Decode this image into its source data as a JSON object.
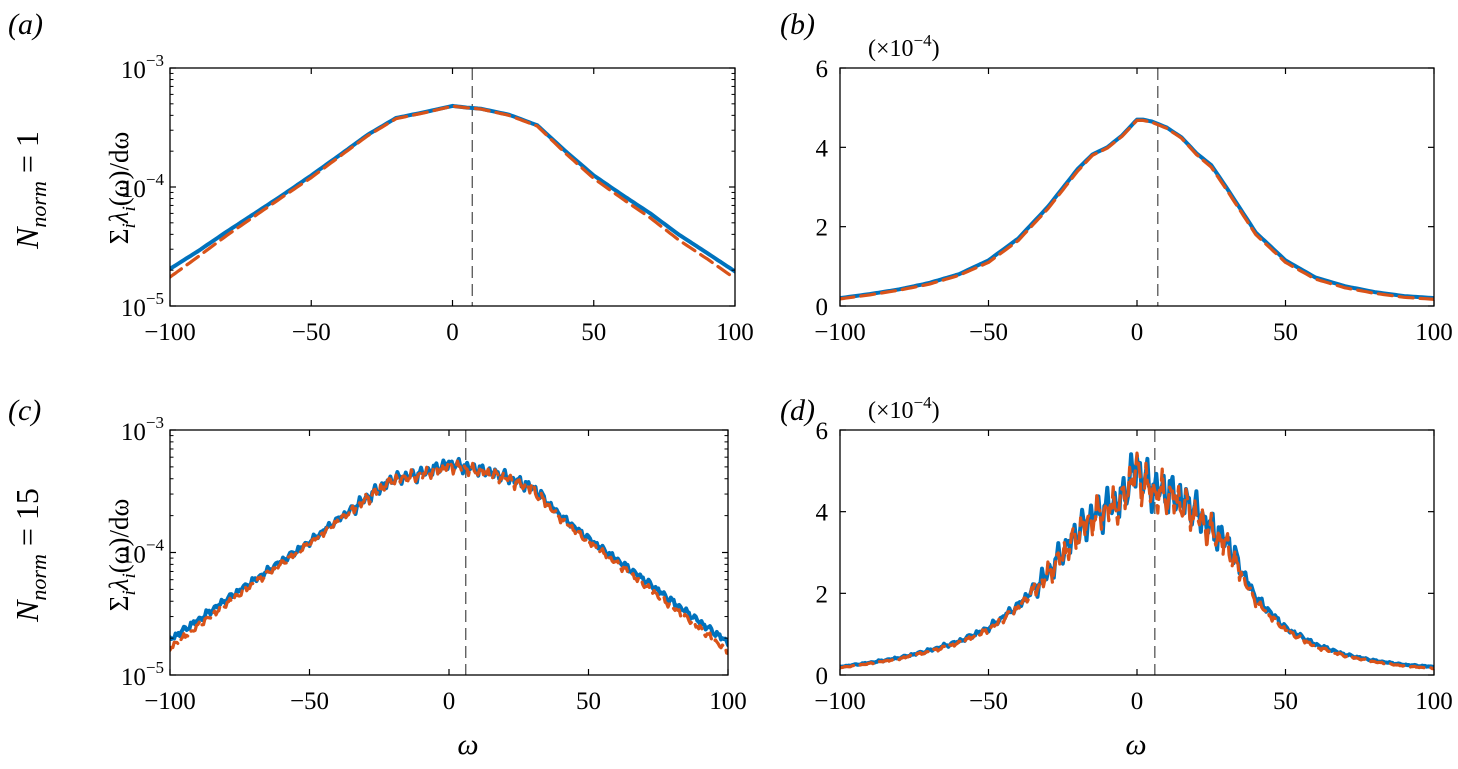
{
  "figure": {
    "row_labels": [
      {
        "text": "N",
        "sub": "norm",
        "rest": " = 1"
      },
      {
        "text": "N",
        "sub": "norm",
        "rest": " = 15"
      }
    ],
    "y_label": {
      "sigma": "Σ",
      "i1": "i",
      "lambda": "λ",
      "i2": "i",
      "tail": "(ω)/dω"
    },
    "x_label": "ω"
  },
  "colors": {
    "series1": "#0072BD",
    "series2": "#D95319",
    "marker_line": "#555555"
  },
  "chart_data": [
    {
      "panel": "(a)",
      "type": "line",
      "yscale": "log",
      "xlim": [
        -100,
        100
      ],
      "ylim": [
        1e-05,
        0.001
      ],
      "xticks": [
        -100,
        -50,
        0,
        50,
        100
      ],
      "xtick_labels": [
        "−100",
        "−50",
        "0",
        "50",
        "100"
      ],
      "yticks": [
        1e-05,
        0.0001,
        0.001
      ],
      "ytick_labels": [
        {
          "base": "10",
          "exp": "−5"
        },
        {
          "base": "10",
          "exp": "−4"
        },
        {
          "base": "10",
          "exp": "−3"
        }
      ],
      "vline_x": 7,
      "noise": 0,
      "x": [
        -100,
        -90,
        -80,
        -70,
        -60,
        -50,
        -40,
        -30,
        -20,
        -10,
        0,
        5,
        10,
        20,
        30,
        40,
        50,
        60,
        70,
        80,
        90,
        100
      ],
      "series": [
        {
          "style": "solid",
          "values": [
            2.05e-05,
            2.9e-05,
            4.2e-05,
            6e-05,
            8.6e-05,
            0.000125,
            0.000185,
            0.000275,
            0.00038,
            0.000425,
            0.00048,
            0.000465,
            0.000455,
            0.000405,
            0.00033,
            0.0002,
            0.000125,
            8.6e-05,
            6e-05,
            4e-05,
            2.8e-05,
            1.95e-05
          ]
        },
        {
          "style": "dashed",
          "values": [
            1.75e-05,
            2.6e-05,
            3.9e-05,
            5.7e-05,
            8.3e-05,
            0.00012,
            0.00018,
            0.00027,
            0.000375,
            0.00042,
            0.000478,
            0.000463,
            0.000452,
            0.0004,
            0.000325,
            0.000192,
            0.000118,
            8e-05,
            5.5e-05,
            3.6e-05,
            2.5e-05,
            1.7e-05
          ]
        }
      ]
    },
    {
      "panel": "(b)",
      "type": "line",
      "yscale": "linear",
      "scale_note": {
        "prefix": "(×10",
        "exp": "−4",
        "suffix": ")"
      },
      "xlim": [
        -100,
        100
      ],
      "ylim": [
        0,
        6
      ],
      "xticks": [
        -100,
        -50,
        0,
        50,
        100
      ],
      "xtick_labels": [
        "−100",
        "−50",
        "0",
        "50",
        "100"
      ],
      "yticks": [
        0,
        2,
        4,
        6
      ],
      "ytick_labels": [
        "0",
        "2",
        "4",
        "6"
      ],
      "vline_x": 7,
      "noise": 0,
      "x": [
        -100,
        -90,
        -80,
        -70,
        -60,
        -50,
        -40,
        -30,
        -20,
        -15,
        -10,
        -5,
        0,
        2,
        5,
        10,
        15,
        20,
        25,
        30,
        40,
        50,
        60,
        70,
        80,
        90,
        100
      ],
      "series": [
        {
          "style": "solid",
          "values": [
            0.2,
            0.3,
            0.42,
            0.58,
            0.8,
            1.15,
            1.7,
            2.5,
            3.45,
            3.82,
            4.0,
            4.3,
            4.7,
            4.7,
            4.65,
            4.5,
            4.25,
            3.85,
            3.55,
            3.0,
            1.85,
            1.15,
            0.72,
            0.5,
            0.35,
            0.25,
            0.2
          ]
        },
        {
          "style": "dashed",
          "values": [
            0.18,
            0.28,
            0.4,
            0.55,
            0.77,
            1.1,
            1.65,
            2.45,
            3.4,
            3.8,
            3.98,
            4.28,
            4.68,
            4.68,
            4.63,
            4.48,
            4.23,
            3.82,
            3.5,
            2.95,
            1.8,
            1.1,
            0.68,
            0.46,
            0.32,
            0.22,
            0.17
          ]
        }
      ]
    },
    {
      "panel": "(c)",
      "type": "line",
      "yscale": "log",
      "xlim": [
        -100,
        100
      ],
      "ylim": [
        1e-05,
        0.001
      ],
      "xticks": [
        -100,
        -50,
        0,
        50,
        100
      ],
      "xtick_labels": [
        "−100",
        "−50",
        "0",
        "50",
        "100"
      ],
      "yticks": [
        1e-05,
        0.0001,
        0.001
      ],
      "ytick_labels": [
        {
          "base": "10",
          "exp": "−5"
        },
        {
          "base": "10",
          "exp": "−4"
        },
        {
          "base": "10",
          "exp": "−3"
        }
      ],
      "vline_x": 6,
      "noise": 0.09,
      "x": [
        -100,
        -90,
        -80,
        -70,
        -60,
        -50,
        -40,
        -30,
        -20,
        -10,
        0,
        5,
        10,
        20,
        30,
        40,
        50,
        60,
        70,
        80,
        90,
        100
      ],
      "series": [
        {
          "style": "solid",
          "values": [
            1.95e-05,
            2.8e-05,
            4.1e-05,
            5.9e-05,
            8.5e-05,
            0.000122,
            0.000185,
            0.000275,
            0.0004,
            0.00044,
            0.00053,
            0.00051,
            0.00048,
            0.00042,
            0.00034,
            0.0002,
            0.00013,
            8.8e-05,
            6e-05,
            4e-05,
            2.7e-05,
            1.85e-05
          ]
        },
        {
          "style": "dashed",
          "values": [
            1.65e-05,
            2.5e-05,
            3.8e-05,
            5.6e-05,
            8.1e-05,
            0.000118,
            0.00018,
            0.00027,
            0.00039,
            0.00043,
            0.00051,
            0.00049,
            0.00046,
            0.00041,
            0.00033,
            0.00019,
            0.000122,
            8.2e-05,
            5.5e-05,
            3.6e-05,
            2.4e-05,
            1.55e-05
          ]
        }
      ]
    },
    {
      "panel": "(d)",
      "type": "line",
      "yscale": "linear",
      "scale_note": {
        "prefix": "(×10",
        "exp": "−4",
        "suffix": ")"
      },
      "xlim": [
        -100,
        100
      ],
      "ylim": [
        0,
        6
      ],
      "xticks": [
        -100,
        -50,
        0,
        50,
        100
      ],
      "xtick_labels": [
        "−100",
        "−50",
        "0",
        "50",
        "100"
      ],
      "yticks": [
        0,
        2,
        4,
        6
      ],
      "ytick_labels": [
        "0",
        "2",
        "4",
        "6"
      ],
      "vline_x": 6,
      "noise": 0.09,
      "x": [
        -100,
        -90,
        -80,
        -70,
        -60,
        -50,
        -40,
        -30,
        -25,
        -20,
        -15,
        -10,
        -5,
        -2,
        0,
        2,
        5,
        10,
        15,
        20,
        25,
        30,
        32,
        40,
        50,
        60,
        70,
        80,
        90,
        100
      ],
      "series": [
        {
          "style": "solid",
          "values": [
            0.2,
            0.3,
            0.42,
            0.6,
            0.82,
            1.15,
            1.7,
            2.5,
            3.0,
            3.5,
            3.9,
            4.1,
            4.3,
            4.9,
            5.1,
            4.8,
            4.6,
            4.5,
            4.3,
            4.0,
            3.6,
            3.3,
            3.0,
            1.9,
            1.15,
            0.75,
            0.5,
            0.35,
            0.25,
            0.2
          ]
        },
        {
          "style": "dashed",
          "values": [
            0.18,
            0.28,
            0.4,
            0.57,
            0.78,
            1.1,
            1.65,
            2.45,
            2.95,
            3.45,
            3.85,
            4.05,
            4.25,
            4.8,
            5.0,
            4.7,
            4.5,
            4.4,
            4.2,
            3.9,
            3.5,
            3.2,
            2.9,
            1.8,
            1.1,
            0.7,
            0.47,
            0.32,
            0.22,
            0.16
          ]
        }
      ]
    }
  ]
}
